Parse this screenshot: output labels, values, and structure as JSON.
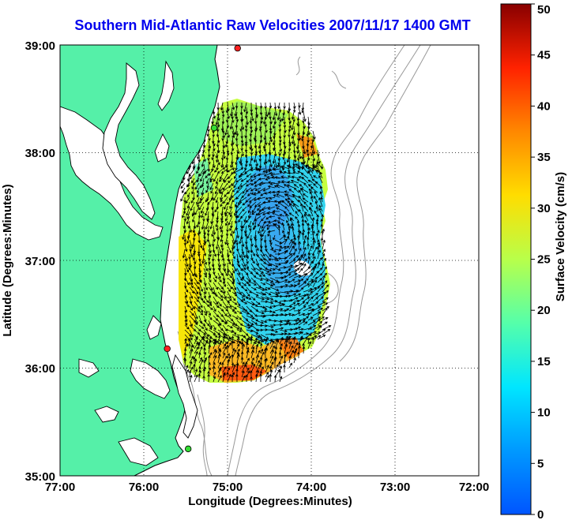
{
  "title": "Southern Mid-Atlantic Raw Velocities 2007/11/17 1400 GMT",
  "map": {
    "xlabel": "Longitude (Degrees:Minutes)",
    "ylabel": "Latitude (Degrees:Minutes)",
    "x_ticks": [
      "77:00",
      "76:00",
      "75:00",
      "74:00",
      "73:00",
      "72:00"
    ],
    "y_ticks": [
      "39:00",
      "38:00",
      "37:00",
      "36:00",
      "35:00"
    ],
    "lon_range": [
      -77,
      -72
    ],
    "lat_range": [
      35,
      39
    ],
    "grid": true,
    "land_color": "#55f0a8",
    "coast_color": "#000000",
    "bathymetry_color": "#999999"
  },
  "colorbar": {
    "label": "Surface Velocity (cm/s)",
    "ticks": [
      "0",
      "5",
      "10",
      "15",
      "20",
      "25",
      "30",
      "35",
      "40",
      "45",
      "50"
    ],
    "range": [
      0,
      50
    ],
    "colormap": "jet"
  },
  "stations": [
    {
      "lon": -74.88,
      "lat": 38.97,
      "color": "#ff2020"
    },
    {
      "lon": -75.16,
      "lat": 38.23,
      "color": "#33dd33"
    },
    {
      "lon": -75.72,
      "lat": 36.18,
      "color": "#ff2020"
    },
    {
      "lon": -75.47,
      "lat": 35.25,
      "color": "#33dd33"
    }
  ]
}
